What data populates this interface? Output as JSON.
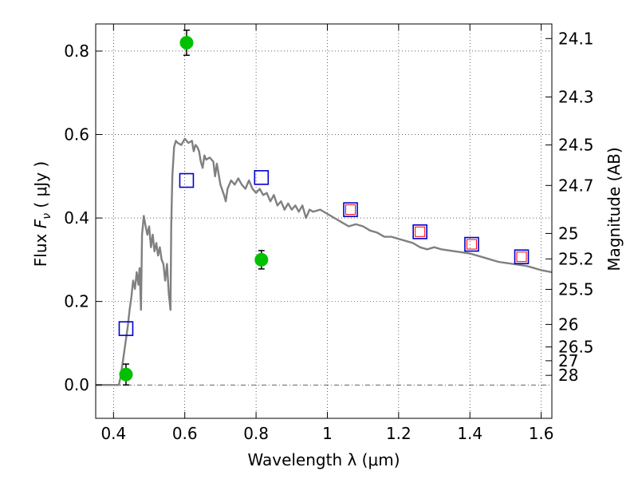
{
  "chart_data": {
    "type": "scatter",
    "title": "",
    "xlabel": "Wavelength  λ (μm)",
    "ylabel": "Flux  F_ν  ( μJy )",
    "ylabel_parts": {
      "prefix": "Flux  ",
      "symbol": "F",
      "subscript": "ν",
      "suffix": "  ( μJy )"
    },
    "y2label": "Magnitude (AB)",
    "xlim": [
      0.35,
      1.63
    ],
    "ylim": [
      -0.08,
      0.865
    ],
    "x_ticks": [
      0.4,
      0.6,
      0.8,
      1.0,
      1.2,
      1.4,
      1.6
    ],
    "x_tick_labels": [
      "0.4",
      "0.6",
      "0.8",
      "1",
      "1.2",
      "1.4",
      "1.6"
    ],
    "y_ticks": [
      0.0,
      0.2,
      0.4,
      0.6,
      0.8
    ],
    "y_tick_labels": [
      "0.0",
      "0.2",
      "0.4",
      "0.6",
      "0.8"
    ],
    "right_axis_ticks": [
      {
        "label": "24.1",
        "flux": 0.83
      },
      {
        "label": "24.3",
        "flux": 0.69
      },
      {
        "label": "24.5",
        "flux": 0.575
      },
      {
        "label": "24.7",
        "flux": 0.478
      },
      {
        "label": "25",
        "flux": 0.363
      },
      {
        "label": "25.2",
        "flux": 0.302
      },
      {
        "label": "25.5",
        "flux": 0.229
      },
      {
        "label": "26",
        "flux": 0.145
      },
      {
        "label": "26.5",
        "flux": 0.091
      },
      {
        "label": "27",
        "flux": 0.058
      },
      {
        "label": "28",
        "flux": 0.023
      }
    ],
    "grid": true,
    "zero_line": true,
    "colors": {
      "model": "#808080",
      "observed": "#00c000",
      "model_box": "#0000cc",
      "inner_box": "#ff0000"
    },
    "series": [
      {
        "style": "line",
        "points": [
          [
            0.35,
            0.0
          ],
          [
            0.4,
            0.0
          ],
          [
            0.415,
            0.0
          ],
          [
            0.42,
            0.02
          ],
          [
            0.43,
            0.08
          ],
          [
            0.44,
            0.14
          ],
          [
            0.445,
            0.18
          ],
          [
            0.45,
            0.21
          ],
          [
            0.455,
            0.25
          ],
          [
            0.46,
            0.23
          ],
          [
            0.465,
            0.27
          ],
          [
            0.47,
            0.24
          ],
          [
            0.473,
            0.28
          ],
          [
            0.477,
            0.18
          ],
          [
            0.48,
            0.36
          ],
          [
            0.485,
            0.405
          ],
          [
            0.49,
            0.38
          ],
          [
            0.495,
            0.36
          ],
          [
            0.5,
            0.38
          ],
          [
            0.505,
            0.33
          ],
          [
            0.51,
            0.36
          ],
          [
            0.515,
            0.32
          ],
          [
            0.52,
            0.34
          ],
          [
            0.525,
            0.31
          ],
          [
            0.53,
            0.33
          ],
          [
            0.535,
            0.3
          ],
          [
            0.54,
            0.29
          ],
          [
            0.545,
            0.25
          ],
          [
            0.55,
            0.29
          ],
          [
            0.555,
            0.22
          ],
          [
            0.56,
            0.18
          ],
          [
            0.562,
            0.38
          ],
          [
            0.565,
            0.5
          ],
          [
            0.57,
            0.57
          ],
          [
            0.575,
            0.585
          ],
          [
            0.58,
            0.58
          ],
          [
            0.59,
            0.575
          ],
          [
            0.6,
            0.59
          ],
          [
            0.61,
            0.58
          ],
          [
            0.62,
            0.585
          ],
          [
            0.625,
            0.56
          ],
          [
            0.63,
            0.575
          ],
          [
            0.635,
            0.57
          ],
          [
            0.64,
            0.56
          ],
          [
            0.645,
            0.535
          ],
          [
            0.65,
            0.52
          ],
          [
            0.655,
            0.55
          ],
          [
            0.66,
            0.54
          ],
          [
            0.67,
            0.545
          ],
          [
            0.68,
            0.535
          ],
          [
            0.685,
            0.5
          ],
          [
            0.69,
            0.53
          ],
          [
            0.7,
            0.48
          ],
          [
            0.71,
            0.455
          ],
          [
            0.715,
            0.44
          ],
          [
            0.72,
            0.47
          ],
          [
            0.73,
            0.49
          ],
          [
            0.74,
            0.48
          ],
          [
            0.75,
            0.495
          ],
          [
            0.76,
            0.48
          ],
          [
            0.77,
            0.47
          ],
          [
            0.78,
            0.49
          ],
          [
            0.79,
            0.47
          ],
          [
            0.8,
            0.46
          ],
          [
            0.81,
            0.47
          ],
          [
            0.82,
            0.455
          ],
          [
            0.83,
            0.46
          ],
          [
            0.84,
            0.44
          ],
          [
            0.85,
            0.455
          ],
          [
            0.86,
            0.43
          ],
          [
            0.87,
            0.44
          ],
          [
            0.88,
            0.42
          ],
          [
            0.89,
            0.435
          ],
          [
            0.9,
            0.42
          ],
          [
            0.91,
            0.43
          ],
          [
            0.92,
            0.415
          ],
          [
            0.93,
            0.43
          ],
          [
            0.94,
            0.4
          ],
          [
            0.95,
            0.42
          ],
          [
            0.96,
            0.415
          ],
          [
            0.98,
            0.42
          ],
          [
            1.0,
            0.41
          ],
          [
            1.02,
            0.4
          ],
          [
            1.04,
            0.39
          ],
          [
            1.06,
            0.38
          ],
          [
            1.08,
            0.385
          ],
          [
            1.1,
            0.38
          ],
          [
            1.12,
            0.37
          ],
          [
            1.14,
            0.365
          ],
          [
            1.16,
            0.355
          ],
          [
            1.18,
            0.355
          ],
          [
            1.2,
            0.35
          ],
          [
            1.22,
            0.345
          ],
          [
            1.24,
            0.34
          ],
          [
            1.26,
            0.33
          ],
          [
            1.28,
            0.325
          ],
          [
            1.3,
            0.33
          ],
          [
            1.32,
            0.325
          ],
          [
            1.36,
            0.32
          ],
          [
            1.4,
            0.315
          ],
          [
            1.44,
            0.305
          ],
          [
            1.48,
            0.295
          ],
          [
            1.52,
            0.29
          ],
          [
            1.56,
            0.285
          ],
          [
            1.6,
            0.275
          ],
          [
            1.63,
            0.27
          ]
        ]
      },
      {
        "style": "errorbar",
        "points": [
          {
            "x": 0.435,
            "y": 0.025,
            "err": 0.025
          },
          {
            "x": 0.605,
            "y": 0.82,
            "err": 0.03
          },
          {
            "x": 0.815,
            "y": 0.3,
            "err": 0.022
          }
        ]
      },
      {
        "style": "open-square",
        "points": [
          [
            0.435,
            0.135
          ],
          [
            0.605,
            0.49
          ],
          [
            0.815,
            0.497
          ],
          [
            1.065,
            0.42
          ],
          [
            1.26,
            0.367
          ],
          [
            1.405,
            0.337
          ],
          [
            1.545,
            0.307
          ]
        ]
      },
      {
        "style": "inner-square",
        "points": [
          [
            1.065,
            0.42
          ],
          [
            1.26,
            0.367
          ],
          [
            1.405,
            0.337
          ],
          [
            1.545,
            0.307
          ]
        ]
      }
    ]
  }
}
